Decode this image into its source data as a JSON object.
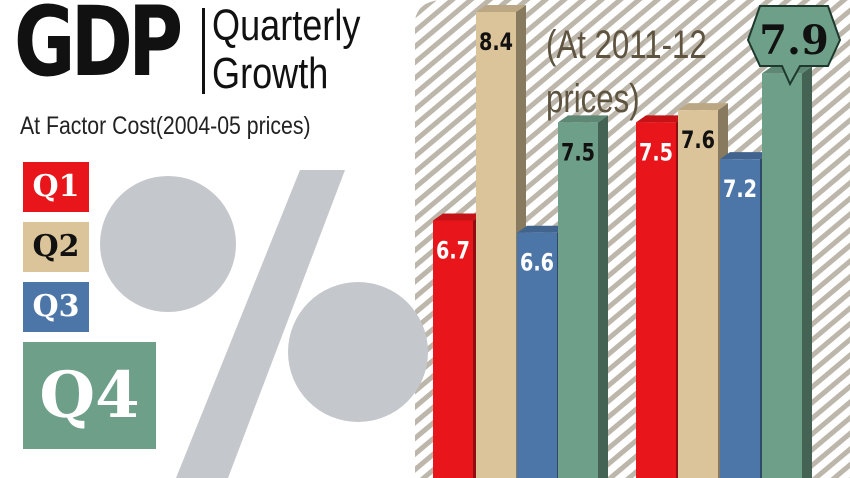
{
  "header": {
    "title": "GDP",
    "subtitle_line1": "Quarterly",
    "subtitle_line2": "Growth",
    "basis": "At Factor Cost(2004-05 prices)",
    "series_basis_line1": "(At 2011-12",
    "series_basis_line2": "prices)"
  },
  "legend": [
    {
      "label": "Q1",
      "color": "#e8151b"
    },
    {
      "label": "Q2",
      "color": "#dcc49a"
    },
    {
      "label": "Q3",
      "color": "#4d76a8"
    },
    {
      "label": "Q4",
      "color": "#6e9f89"
    }
  ],
  "decor": {
    "percent_symbol_color": "#c4c7cb",
    "hatch_color": "#a59d8f"
  },
  "chart_data": {
    "type": "bar",
    "categories": [
      "Q1",
      "Q2",
      "Q3",
      "Q4",
      "Q1",
      "Q2",
      "Q3",
      "Q4"
    ],
    "values": [
      6.7,
      8.4,
      6.6,
      7.5,
      7.5,
      7.6,
      7.2,
      7.9
    ],
    "value_labels": [
      "6.7",
      "8.4",
      "6.6",
      "7.5",
      "7.5",
      "7.6",
      "7.2",
      "7.9"
    ],
    "colors": [
      "#e8151b",
      "#dcc49a",
      "#4d76a8",
      "#6e9f89",
      "#e8151b",
      "#dcc49a",
      "#4d76a8",
      "#6e9f89"
    ],
    "highlight_index": 7,
    "title": "",
    "xlabel": "",
    "ylabel": ""
  }
}
